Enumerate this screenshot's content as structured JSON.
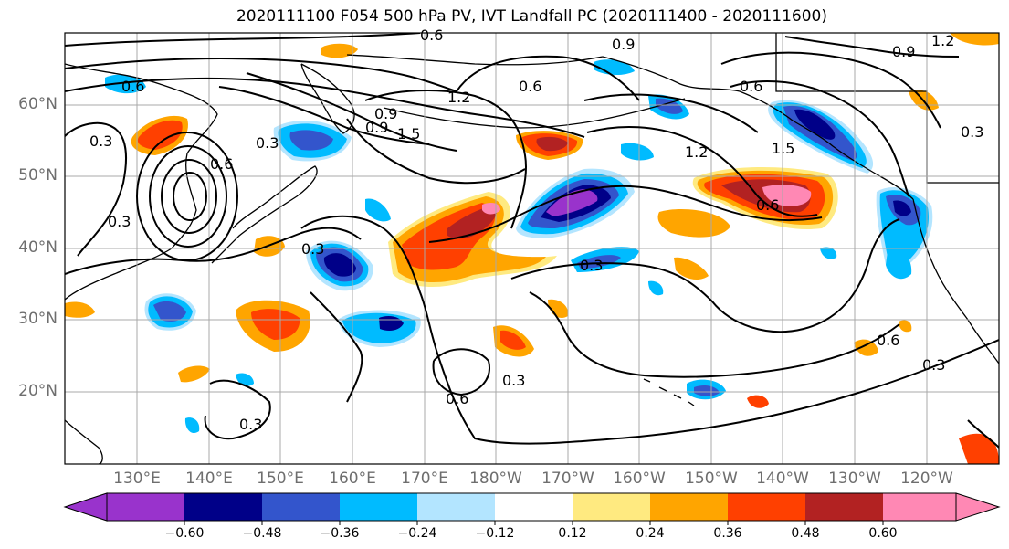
{
  "title": "2020111100 F054 500 hPa PV, IVT Landfall PC (2020111400 - 2020111600)",
  "lat_labels": [
    "60°N",
    "50°N",
    "40°N",
    "30°N",
    "20°N"
  ],
  "lon_labels": [
    "130°E",
    "140°E",
    "150°E",
    "160°E",
    "170°E",
    "180°W",
    "170°W",
    "160°W",
    "150°W",
    "140°W",
    "130°W",
    "120°W"
  ],
  "contour_labels": [
    "0.6",
    "0.9",
    "0.9",
    "1.2",
    "0.6",
    "1.2",
    "0.6",
    "1.5",
    "0.9",
    "0.3",
    "1.5",
    "1.2",
    "0.6",
    "0.3",
    "0.6",
    "0.3",
    "0.3",
    "0.3",
    "0.3",
    "0.6",
    "0.3",
    "0.6",
    "0.3",
    "0.3",
    "0.9",
    "0.6"
  ],
  "colorbar": {
    "ticks": [
      "−0.60",
      "−0.48",
      "−0.36",
      "−0.24",
      "−0.12",
      "0.12",
      "0.24",
      "0.36",
      "0.48",
      "0.60"
    ],
    "colors": [
      "#9933cc",
      "#000088",
      "#3355cc",
      "#00bbff",
      "#b3e5ff",
      "#ffffff",
      "#ffea80",
      "#ffa500",
      "#ff4000",
      "#b22222",
      "#ff88b4"
    ]
  }
}
